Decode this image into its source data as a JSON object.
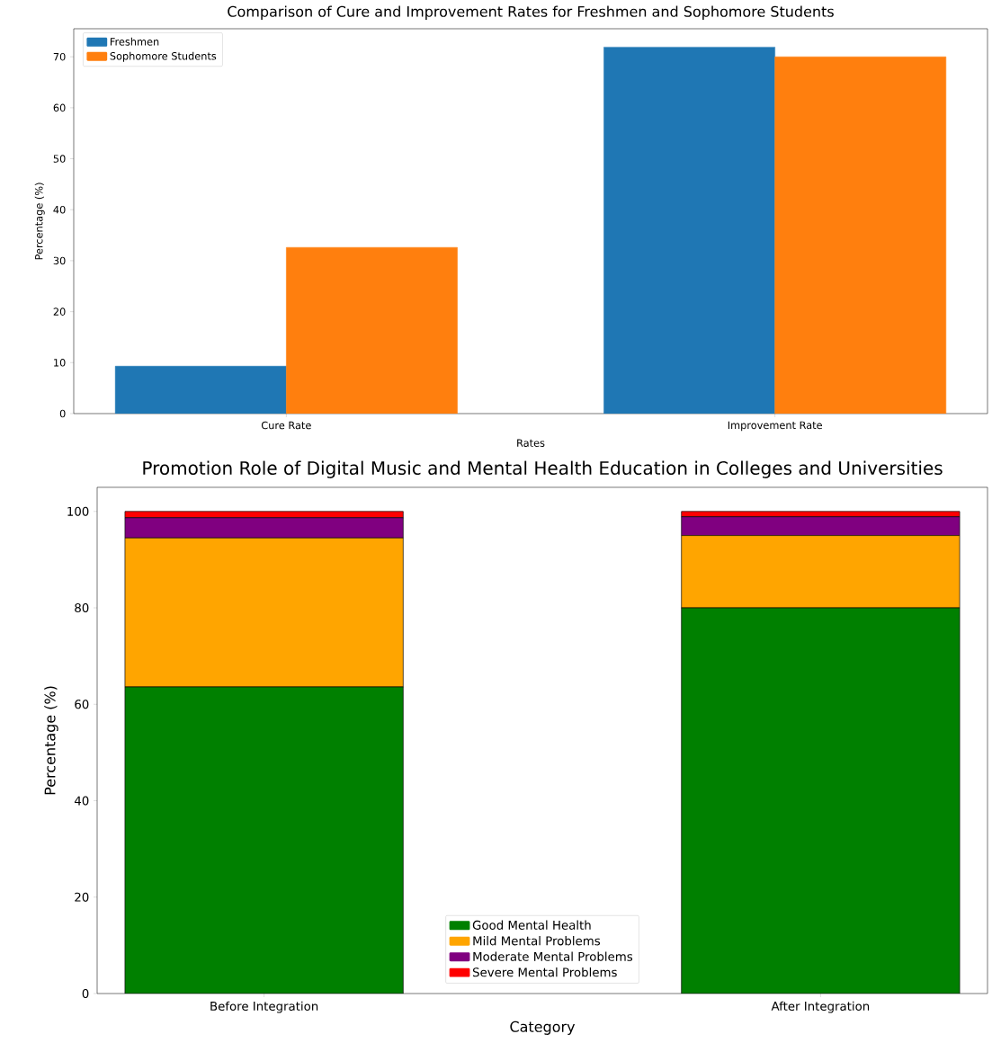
{
  "chart_data": [
    {
      "type": "bar",
      "title": "Comparison of Cure and Improvement Rates for Freshmen and Sophomore Students",
      "xlabel": "Rates",
      "ylabel": "Percentage (%)",
      "categories": [
        "Cure Rate",
        "Improvement Rate"
      ],
      "series": [
        {
          "name": "Freshmen",
          "color": "#1f77b4",
          "values": [
            9.3,
            71.9
          ]
        },
        {
          "name": "Sophomore Students",
          "color": "#ff7f0e",
          "values": [
            32.6,
            70.0
          ]
        }
      ],
      "ylim": [
        0,
        75.5
      ],
      "yticks": [
        0,
        10,
        20,
        30,
        40,
        50,
        60,
        70
      ],
      "legend": "top left"
    },
    {
      "type": "bar",
      "stacked": true,
      "title": "Promotion Role of Digital Music and Mental Health Education in Colleges and Universities",
      "xlabel": "Category",
      "ylabel": "Percentage (%)",
      "categories": [
        "Before Integration",
        "After Integration"
      ],
      "series": [
        {
          "name": "Good Mental Health",
          "color": "#008000",
          "values": [
            63.6,
            80.0
          ]
        },
        {
          "name": "Mild Mental Problems",
          "color": "#ffa500",
          "values": [
            30.9,
            15.0
          ]
        },
        {
          "name": "Moderate Mental Problems",
          "color": "#800080",
          "values": [
            4.2,
            3.9
          ]
        },
        {
          "name": "Severe Mental Problems",
          "color": "#ff0000",
          "values": [
            1.3,
            1.1
          ]
        }
      ],
      "ylim": [
        0,
        105
      ],
      "yticks": [
        0,
        20,
        40,
        60,
        80,
        100
      ],
      "legend": "bottom"
    }
  ]
}
